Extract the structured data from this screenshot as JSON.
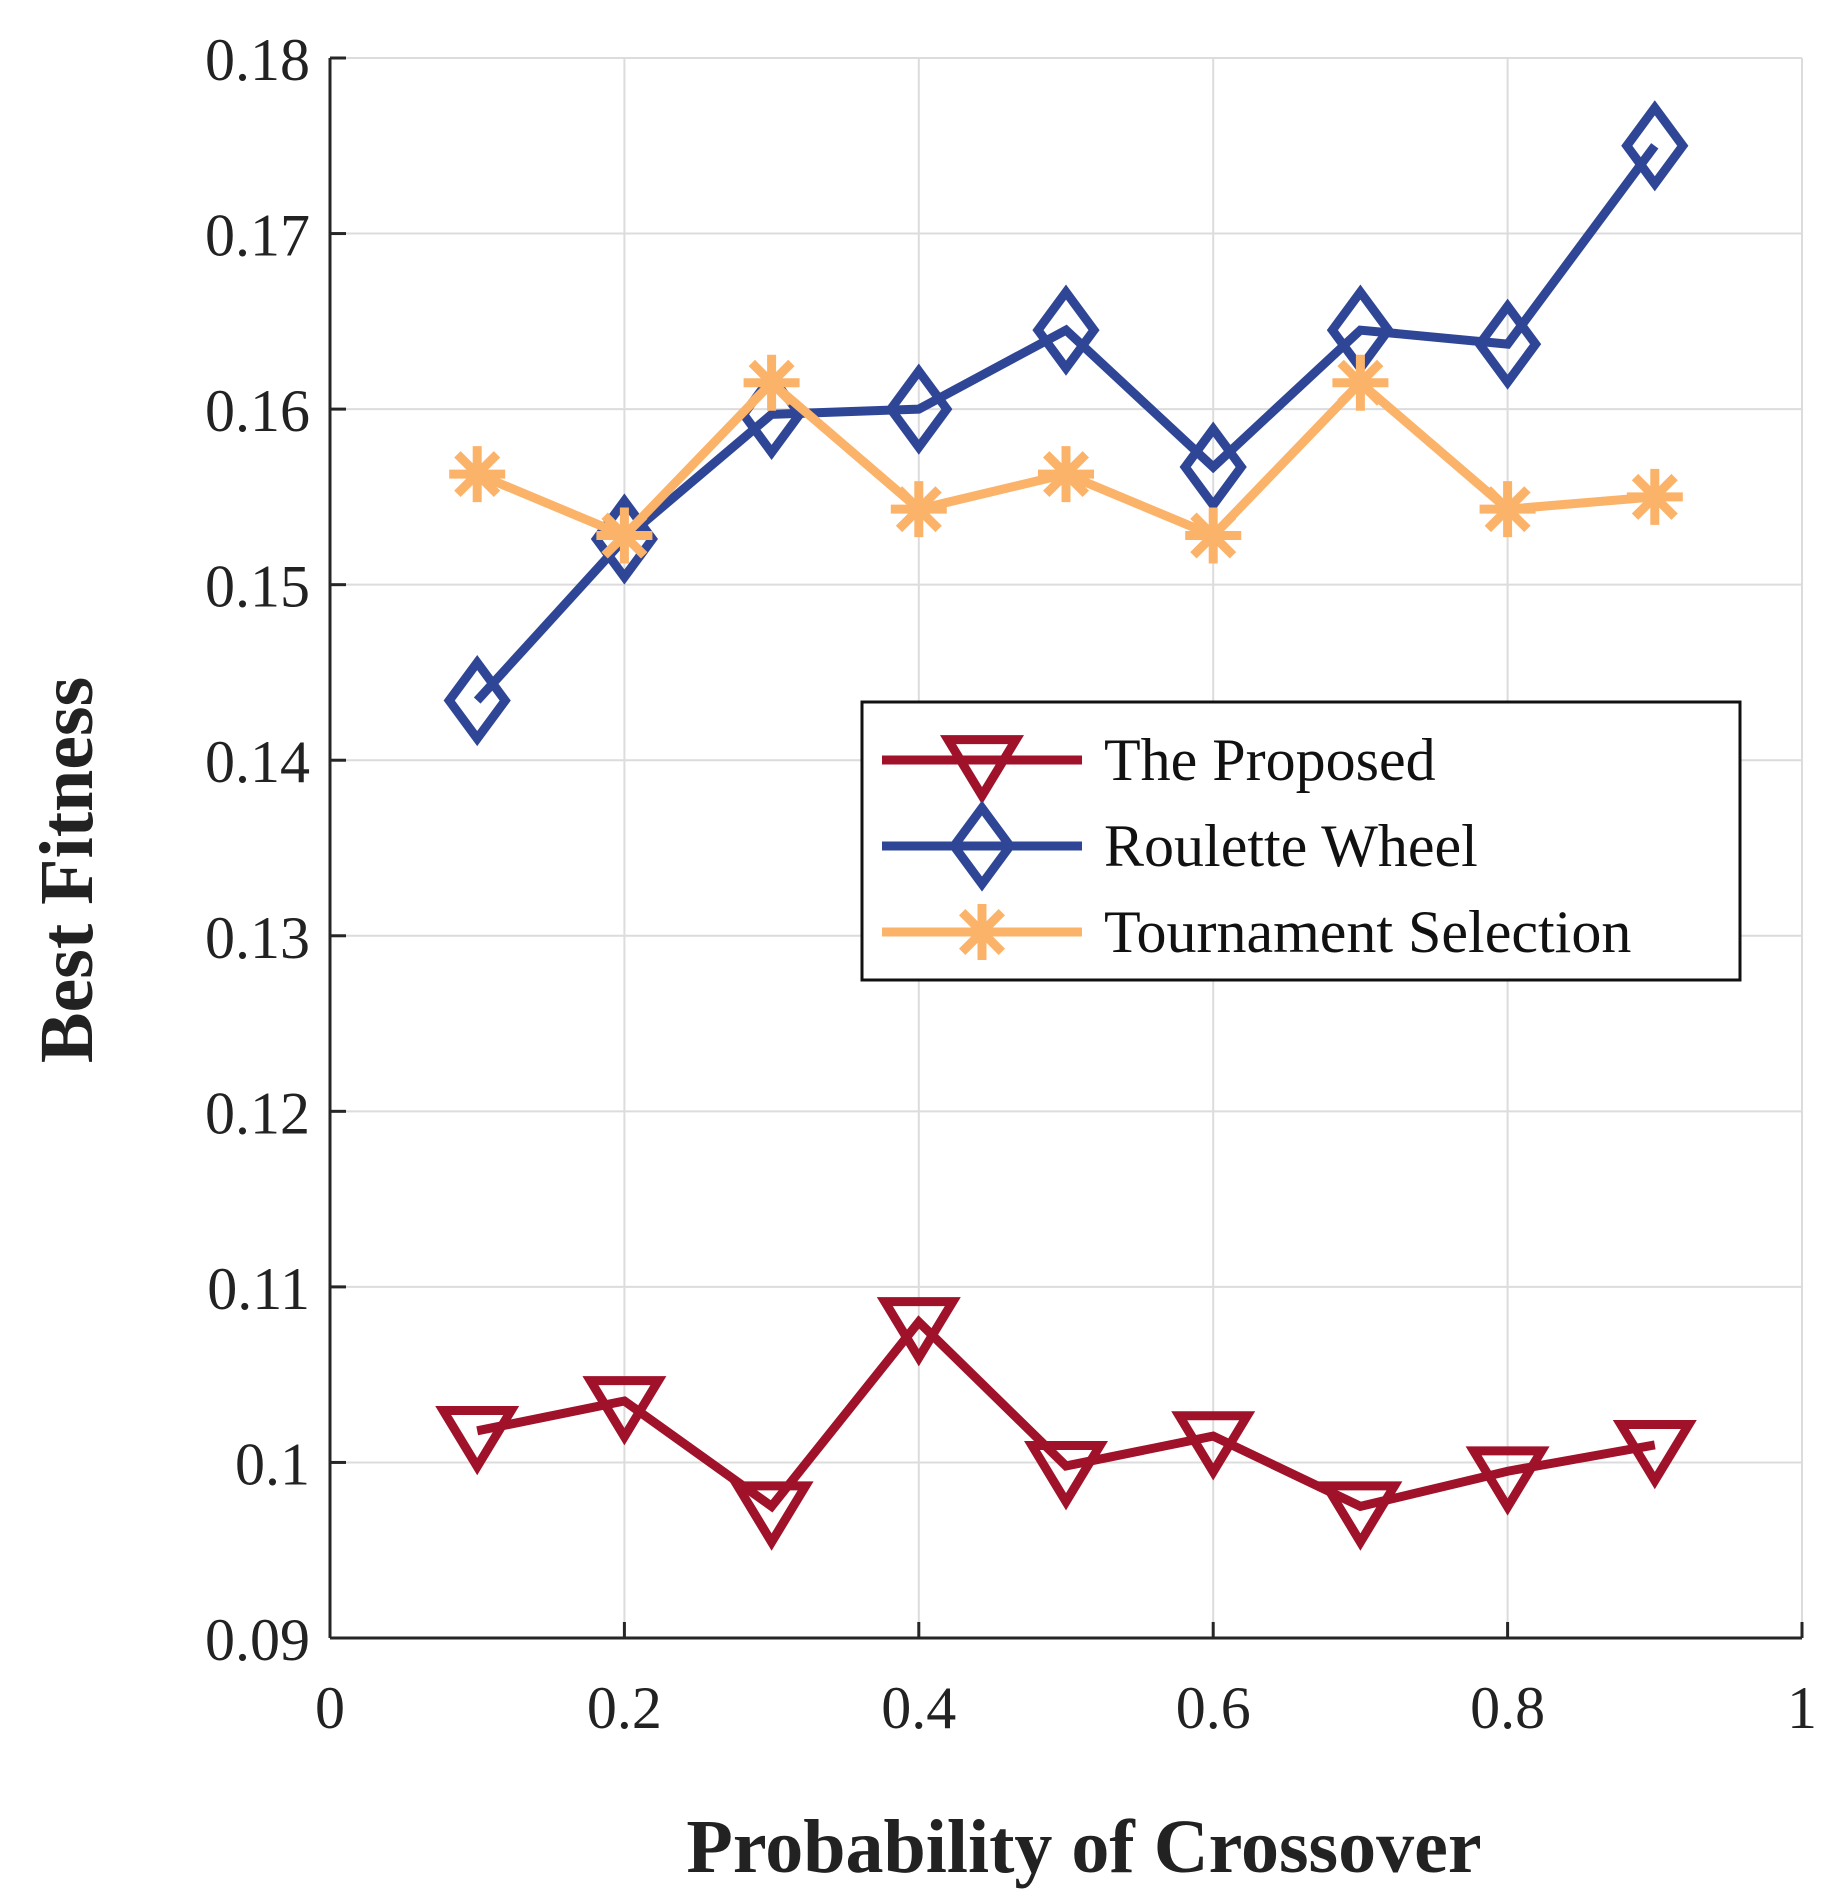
{
  "chart_data": {
    "type": "line",
    "title": "",
    "xlabel": "Probability of Crossover",
    "ylabel": "Best Fitness",
    "xlim": [
      0,
      1
    ],
    "ylim": [
      0.09,
      0.18
    ],
    "grid": true,
    "legend_position": "center-right",
    "x_ticks": [
      0,
      0.2,
      0.4,
      0.6,
      0.8,
      1
    ],
    "x_tick_labels": [
      "0",
      "0.2",
      "0.4",
      "0.6",
      "0.8",
      "1"
    ],
    "y_ticks": [
      0.09,
      0.1,
      0.11,
      0.12,
      0.13,
      0.14,
      0.15,
      0.16,
      0.17,
      0.18
    ],
    "y_tick_labels": [
      "0.09",
      "0.1",
      "0.11",
      "0.12",
      "0.13",
      "0.14",
      "0.15",
      "0.16",
      "0.17",
      "0.18"
    ],
    "x": [
      0.1,
      0.2,
      0.3,
      0.4,
      0.5,
      0.6,
      0.7,
      0.8,
      0.9
    ],
    "series": [
      {
        "name": "The Proposed",
        "color": "#a0112a",
        "marker": "triangle-down",
        "values": [
          0.1018,
          0.1035,
          0.0975,
          0.108,
          0.0998,
          0.1015,
          0.0975,
          0.0995,
          0.101
        ]
      },
      {
        "name": "Roulette Wheel",
        "color": "#2f4697",
        "marker": "diamond",
        "values": [
          0.1434,
          0.1526,
          0.1597,
          0.16,
          0.1645,
          0.1567,
          0.1645,
          0.1637,
          0.175
        ]
      },
      {
        "name": "Tournament Selection",
        "color": "#fbb36a",
        "marker": "asterisk",
        "values": [
          0.1563,
          0.1528,
          0.1615,
          0.1543,
          0.1563,
          0.1528,
          0.1615,
          0.1543,
          0.155
        ]
      }
    ]
  }
}
